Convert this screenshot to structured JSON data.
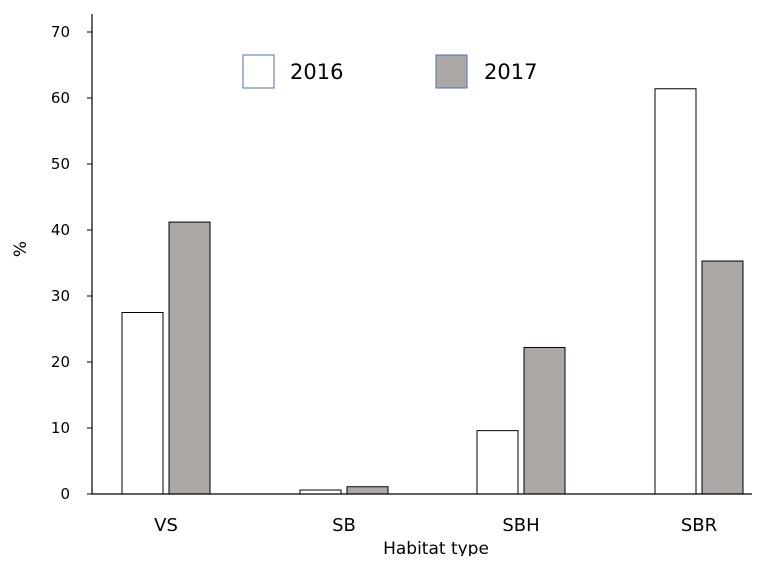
{
  "chart_data": {
    "type": "bar",
    "title": "",
    "xlabel": "Habitat type",
    "ylabel": "%",
    "categories": [
      "VS",
      "SB",
      "SBH",
      "SBR"
    ],
    "series": [
      {
        "name": "2016",
        "values": [
          27.5,
          0.6,
          9.6,
          61.4
        ],
        "color": "#ffffff"
      },
      {
        "name": "2017",
        "values": [
          41.2,
          1.1,
          22.2,
          35.3
        ],
        "color": "#aca8a6"
      }
    ],
    "ylim": [
      0,
      70
    ],
    "yticks": [
      0,
      10,
      20,
      30,
      40,
      50,
      60,
      70
    ],
    "grid": false,
    "legend_position": "top-center"
  },
  "colors": {
    "bar_stroke": "#000000",
    "legend_border": "#4a6fb3",
    "axis": "#000000"
  }
}
